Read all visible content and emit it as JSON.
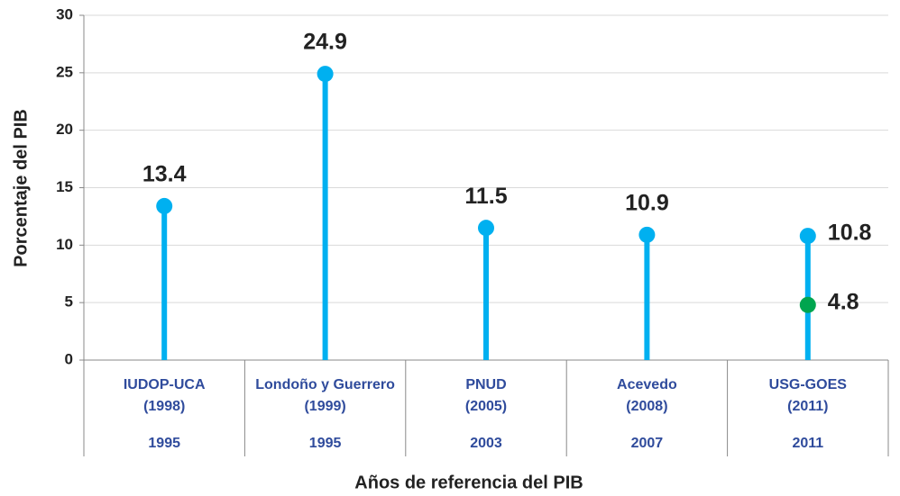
{
  "chart_data": {
    "type": "lollipop",
    "y_label": "Porcentaje del PIB",
    "x_label": "Años de referencia del PIB",
    "categories": [
      [
        "IUDOP-UCA",
        "(1998)"
      ],
      [
        "Londoño y Guerrero",
        "(1999)"
      ],
      [
        "PNUD",
        "(2005)"
      ],
      [
        "Acevedo",
        "(2008)"
      ],
      [
        "USG-GOES",
        "(2011)"
      ]
    ],
    "category_groups": [
      "1995",
      "1995",
      "2003",
      "2007",
      "2011"
    ],
    "series": [
      {
        "color": "#00b0f0",
        "values": [
          13.4,
          24.9,
          11.5,
          10.9,
          10.8
        ]
      },
      {
        "color": "#00a54f",
        "values": [
          null,
          null,
          null,
          null,
          4.8
        ]
      }
    ],
    "ylim": [
      0,
      30
    ],
    "yticks": [
      0,
      5,
      10,
      15,
      20,
      25,
      30
    ],
    "grid": true
  }
}
